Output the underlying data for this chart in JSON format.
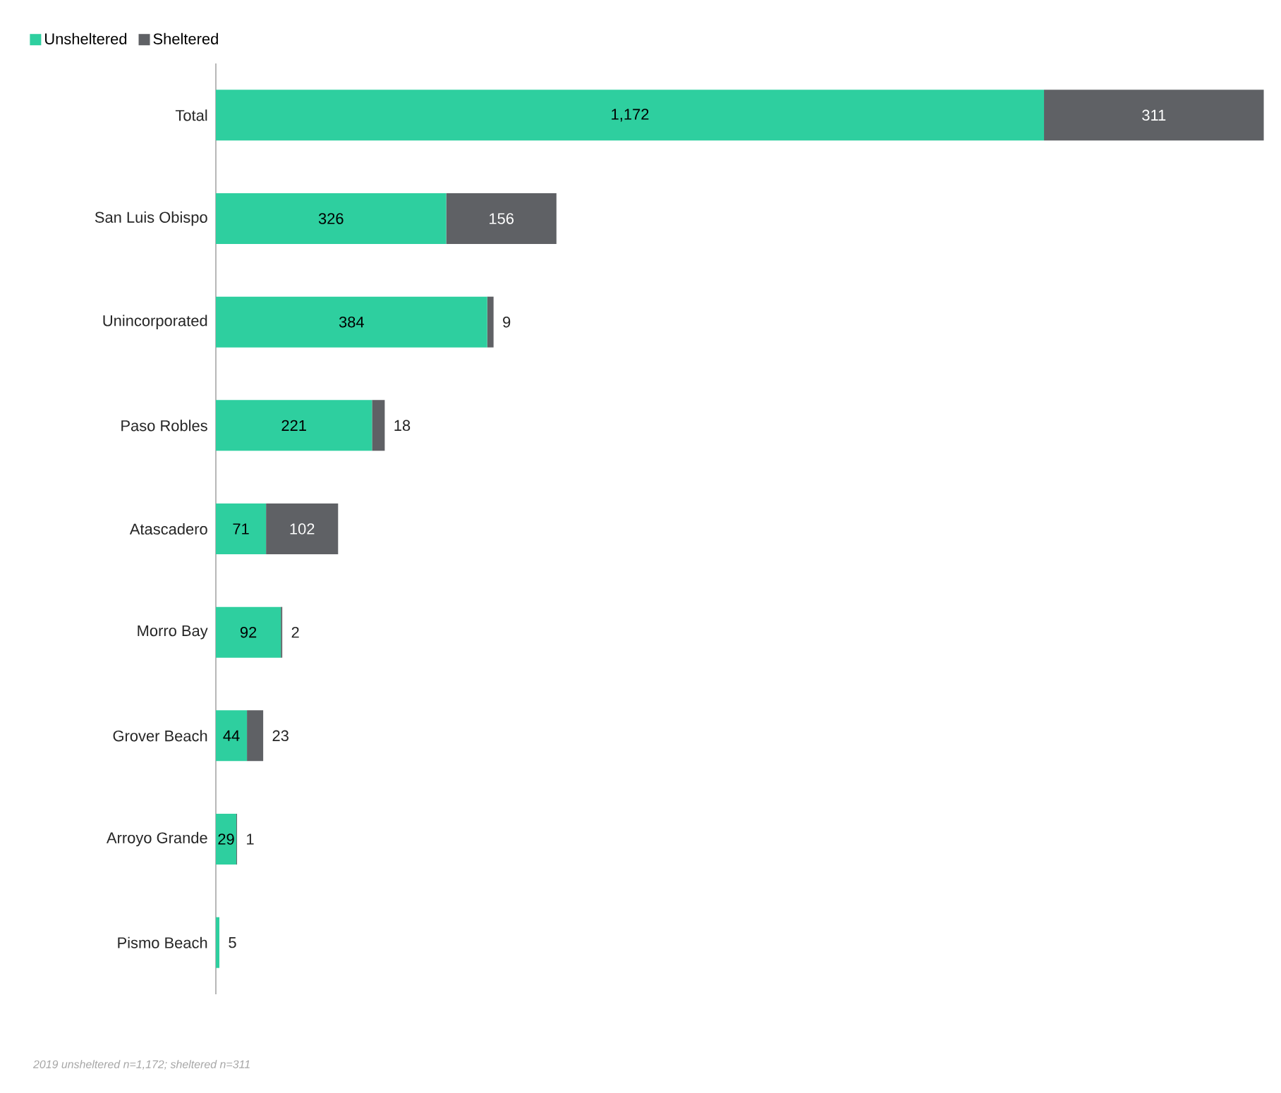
{
  "chart_data": {
    "type": "bar",
    "orientation": "horizontal",
    "stacked": true,
    "legend": "top left",
    "tick_labels": "y",
    "categories": [
      "Total",
      "San Luis Obispo",
      "Unincorporated",
      "Paso Robles",
      "Atascadero",
      "Morro Bay",
      "Grover Beach",
      "Arroyo Grande",
      "Pismo Beach"
    ],
    "series": [
      {
        "name": "Unsheltered",
        "color": "#2ecf9f",
        "values": [
          1172,
          326,
          384,
          221,
          71,
          92,
          44,
          29,
          5
        ],
        "value_labels": [
          "1,172",
          "326",
          "384",
          "221",
          "71",
          "92",
          "44",
          "29",
          "5"
        ]
      },
      {
        "name": "Sheltered",
        "color": "#5f6165",
        "values": [
          311,
          156,
          9,
          18,
          102,
          2,
          23,
          1,
          0
        ],
        "value_labels": [
          "311",
          "156",
          "9",
          "18",
          "102",
          "2",
          "23",
          "1",
          null
        ]
      }
    ],
    "annotations": [
      "2019 unsheltered n=1,172; sheltered n=311"
    ]
  }
}
